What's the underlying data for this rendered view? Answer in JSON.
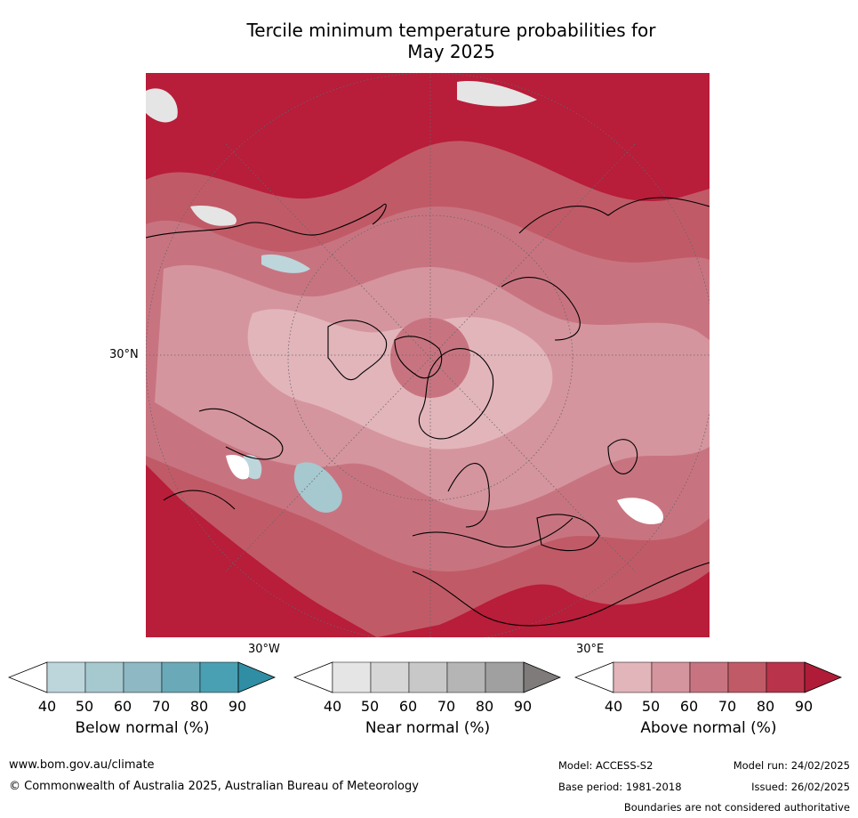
{
  "title_line1": "Tercile minimum temperature probabilities for",
  "title_line2": "May 2025",
  "map": {
    "lat_label": "30°N",
    "lon_label_left": "30°W",
    "lon_label_right": "30°E"
  },
  "colorbars": [
    {
      "label": "Below normal (%)",
      "ticks": [
        "40",
        "50",
        "60",
        "70",
        "80",
        "90"
      ],
      "colors": [
        "#ffffff",
        "#bcd6dc",
        "#a6c8cf",
        "#8db8c4",
        "#6aaab8",
        "#4aa0b3",
        "#2f8ea3"
      ]
    },
    {
      "label": "Near normal (%)",
      "ticks": [
        "40",
        "50",
        "60",
        "70",
        "80",
        "90"
      ],
      "colors": [
        "#ffffff",
        "#e5e5e5",
        "#d6d6d6",
        "#c8c8c8",
        "#b5b5b5",
        "#a0a0a0",
        "#7f7b7b"
      ]
    },
    {
      "label": "Above normal (%)",
      "ticks": [
        "40",
        "50",
        "60",
        "70",
        "80",
        "90"
      ],
      "colors": [
        "#ffffff",
        "#e2b5bb",
        "#d5959e",
        "#c87480",
        "#c15a67",
        "#b9334a",
        "#b01c38"
      ]
    }
  ],
  "footer": {
    "url": "www.bom.gov.au/climate",
    "copyright": "© Commonwealth of Australia 2025, Australian Bureau of Meteorology",
    "model": "Model: ACCESS-S2",
    "base_period": "Base period: 1981-2018",
    "model_run": "Model run: 24/02/2025",
    "issued": "Issued: 26/02/2025",
    "disclaimer": "Boundaries are not considered authoritative"
  }
}
